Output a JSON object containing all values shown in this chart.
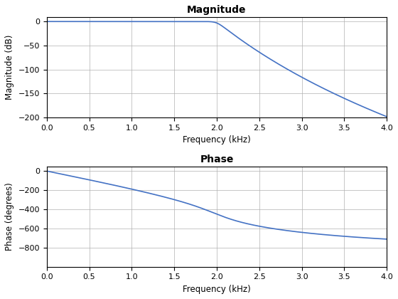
{
  "title_mag": "Magnitude",
  "title_phase": "Phase",
  "xlabel": "Frequency (kHz)",
  "ylabel_mag": "Magnitude (dB)",
  "ylabel_phase": "Phase (degrees)",
  "xlim": [
    0,
    4
  ],
  "ylim_mag": [
    -200,
    10
  ],
  "ylim_phase": [
    -1000,
    50
  ],
  "yticks_mag": [
    0,
    -50,
    -100,
    -150,
    -200
  ],
  "yticks_phase": [
    0,
    -200,
    -400,
    -600,
    -800
  ],
  "xticks": [
    0,
    0.5,
    1,
    1.5,
    2,
    2.5,
    3,
    3.5,
    4
  ],
  "line_color": "#4472C4",
  "bg_color": "#ffffff",
  "grid_color": "#b0b0b0",
  "fc_khz": 2.0,
  "num_points": 2000,
  "line_width": 1.2,
  "n_order_mag": 33,
  "n_order_phase": 10,
  "title_fontsize": 10,
  "label_fontsize": 8.5,
  "tick_fontsize": 8
}
